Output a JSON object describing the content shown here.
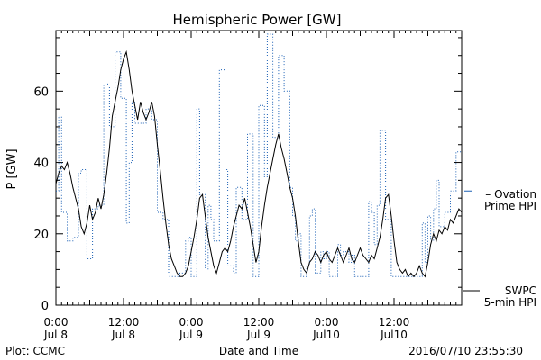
{
  "chart_data": {
    "type": "line",
    "title": "Hemispheric Power [GW]",
    "xlabel": "Date and Time",
    "ylabel": "P [GW]",
    "ylim": [
      0,
      77
    ],
    "xlim_hours": [
      0,
      72
    ],
    "yticks": [
      0,
      20,
      40,
      60
    ],
    "xticks": [
      {
        "h": 0,
        "time": "0:00",
        "date": "Jul 8"
      },
      {
        "h": 12,
        "time": "12:00",
        "date": "Jul 8"
      },
      {
        "h": 24,
        "time": "0:00",
        "date": "Jul 9"
      },
      {
        "h": 36,
        "time": "12:00",
        "date": "Jul 9"
      },
      {
        "h": 48,
        "time": "0:00",
        "date": "Jul10"
      },
      {
        "h": 60,
        "time": "12:00",
        "date": "Jul10"
      }
    ],
    "series": [
      {
        "name": "5-min HPI",
        "legend_lines": [
          "SWPC",
          "5-min HPI"
        ],
        "color": "#000000",
        "style": "solid",
        "points": [
          [
            0,
            34
          ],
          [
            0.5,
            37
          ],
          [
            1,
            39
          ],
          [
            1.5,
            38
          ],
          [
            2,
            40
          ],
          [
            2.5,
            37
          ],
          [
            3,
            33
          ],
          [
            3.5,
            30
          ],
          [
            4,
            27
          ],
          [
            4.5,
            22
          ],
          [
            5,
            20
          ],
          [
            5.5,
            23
          ],
          [
            6,
            28
          ],
          [
            6.5,
            24
          ],
          [
            7,
            26
          ],
          [
            7.5,
            30
          ],
          [
            8,
            27
          ],
          [
            8.5,
            31
          ],
          [
            9,
            37
          ],
          [
            9.5,
            44
          ],
          [
            10,
            53
          ],
          [
            10.5,
            57
          ],
          [
            11,
            61
          ],
          [
            11.5,
            66
          ],
          [
            12,
            69
          ],
          [
            12.5,
            71
          ],
          [
            13,
            66
          ],
          [
            13.5,
            60
          ],
          [
            14,
            56
          ],
          [
            14.5,
            52
          ],
          [
            15,
            57
          ],
          [
            15.5,
            54
          ],
          [
            16,
            52
          ],
          [
            16.5,
            54
          ],
          [
            17,
            57
          ],
          [
            17.5,
            53
          ],
          [
            18,
            45
          ],
          [
            18.5,
            38
          ],
          [
            19,
            30
          ],
          [
            19.5,
            23
          ],
          [
            20,
            17
          ],
          [
            20.5,
            13
          ],
          [
            21,
            11
          ],
          [
            21.5,
            9
          ],
          [
            22,
            8
          ],
          [
            22.5,
            8
          ],
          [
            23,
            9
          ],
          [
            23.5,
            11
          ],
          [
            24,
            15
          ],
          [
            24.5,
            19
          ],
          [
            25,
            24
          ],
          [
            25.5,
            30
          ],
          [
            26,
            31
          ],
          [
            26.5,
            25
          ],
          [
            27,
            19
          ],
          [
            27.5,
            15
          ],
          [
            28,
            11
          ],
          [
            28.5,
            9
          ],
          [
            29,
            12
          ],
          [
            29.5,
            15
          ],
          [
            30,
            16
          ],
          [
            30.5,
            15
          ],
          [
            31,
            18
          ],
          [
            31.5,
            22
          ],
          [
            32,
            25
          ],
          [
            32.5,
            28
          ],
          [
            33,
            27
          ],
          [
            33.5,
            30
          ],
          [
            34,
            26
          ],
          [
            34.5,
            22
          ],
          [
            35,
            17
          ],
          [
            35.5,
            12
          ],
          [
            36,
            15
          ],
          [
            36.5,
            22
          ],
          [
            37,
            28
          ],
          [
            37.5,
            33
          ],
          [
            38,
            37
          ],
          [
            38.5,
            41
          ],
          [
            39,
            45
          ],
          [
            39.5,
            48
          ],
          [
            40,
            44
          ],
          [
            40.5,
            41
          ],
          [
            41,
            37
          ],
          [
            41.5,
            33
          ],
          [
            42,
            30
          ],
          [
            42.5,
            25
          ],
          [
            43,
            18
          ],
          [
            43.5,
            12
          ],
          [
            44,
            10
          ],
          [
            44.5,
            9
          ],
          [
            45,
            12
          ],
          [
            45.5,
            13
          ],
          [
            46,
            15
          ],
          [
            46.5,
            14
          ],
          [
            47,
            12
          ],
          [
            47.5,
            14
          ],
          [
            48,
            15
          ],
          [
            48.5,
            13
          ],
          [
            49,
            12
          ],
          [
            49.5,
            14
          ],
          [
            50,
            16
          ],
          [
            50.5,
            14
          ],
          [
            51,
            12
          ],
          [
            51.5,
            14
          ],
          [
            52,
            16
          ],
          [
            52.5,
            13
          ],
          [
            53,
            12
          ],
          [
            53.5,
            14
          ],
          [
            54,
            16
          ],
          [
            54.5,
            14
          ],
          [
            55,
            13
          ],
          [
            55.5,
            12
          ],
          [
            56,
            14
          ],
          [
            56.5,
            13
          ],
          [
            57,
            16
          ],
          [
            57.5,
            19
          ],
          [
            58,
            24
          ],
          [
            58.5,
            30
          ],
          [
            59,
            31
          ],
          [
            59.5,
            25
          ],
          [
            60,
            18
          ],
          [
            60.5,
            12
          ],
          [
            61,
            10
          ],
          [
            61.5,
            9
          ],
          [
            62,
            10
          ],
          [
            62.5,
            8
          ],
          [
            63,
            9
          ],
          [
            63.5,
            8
          ],
          [
            64,
            9
          ],
          [
            64.5,
            11
          ],
          [
            65,
            9
          ],
          [
            65.5,
            8
          ],
          [
            66,
            12
          ],
          [
            66.5,
            17
          ],
          [
            67,
            20
          ],
          [
            67.5,
            18
          ],
          [
            68,
            21
          ],
          [
            68.5,
            20
          ],
          [
            69,
            22
          ],
          [
            69.5,
            21
          ],
          [
            70,
            24
          ],
          [
            70.5,
            23
          ],
          [
            71,
            25
          ],
          [
            71.5,
            27
          ],
          [
            72,
            26
          ]
        ]
      },
      {
        "name": "Ovation Prime HPI",
        "legend_lines": [
          "– Ovation",
          "Prime HPI"
        ],
        "color": "#1a5fb4",
        "style": "dotted",
        "steps": [
          [
            0,
            32
          ],
          [
            0.5,
            53
          ],
          [
            1,
            26
          ],
          [
            2,
            18
          ],
          [
            3,
            19
          ],
          [
            4,
            37
          ],
          [
            4.5,
            38
          ],
          [
            5.5,
            13
          ],
          [
            6.5,
            27
          ],
          [
            7.5,
            28
          ],
          [
            8.5,
            62
          ],
          [
            9.5,
            50
          ],
          [
            10.5,
            71
          ],
          [
            11.5,
            58
          ],
          [
            12.5,
            23
          ],
          [
            13,
            40
          ],
          [
            13.5,
            57
          ],
          [
            14,
            51
          ],
          [
            16,
            55
          ],
          [
            17,
            52
          ],
          [
            18,
            26
          ],
          [
            19,
            24
          ],
          [
            20,
            8
          ],
          [
            22,
            9
          ],
          [
            23,
            18
          ],
          [
            23.5,
            19
          ],
          [
            24,
            8
          ],
          [
            25,
            55
          ],
          [
            25.5,
            31
          ],
          [
            26.5,
            10
          ],
          [
            27,
            28
          ],
          [
            27.5,
            24
          ],
          [
            28,
            18
          ],
          [
            29,
            66
          ],
          [
            30,
            38
          ],
          [
            30.5,
            11
          ],
          [
            31.5,
            9
          ],
          [
            32,
            33
          ],
          [
            33,
            24
          ],
          [
            34,
            48
          ],
          [
            35,
            8
          ],
          [
            36,
            56
          ],
          [
            37,
            36
          ],
          [
            37.5,
            76
          ],
          [
            38.5,
            47
          ],
          [
            39.5,
            70
          ],
          [
            40.5,
            60
          ],
          [
            41.5,
            33
          ],
          [
            42,
            25
          ],
          [
            42.5,
            18
          ],
          [
            43,
            20
          ],
          [
            43.5,
            8
          ],
          [
            44.5,
            11
          ],
          [
            45,
            25
          ],
          [
            45.5,
            27
          ],
          [
            46,
            9
          ],
          [
            47,
            15
          ],
          [
            47.5,
            13
          ],
          [
            48,
            15
          ],
          [
            48.5,
            8
          ],
          [
            50,
            17
          ],
          [
            50.5,
            14
          ],
          [
            51,
            15
          ],
          [
            52,
            12
          ],
          [
            52.5,
            14
          ],
          [
            53,
            8
          ],
          [
            55.5,
            29
          ],
          [
            56,
            26
          ],
          [
            56.5,
            17
          ],
          [
            57,
            28
          ],
          [
            57.5,
            49
          ],
          [
            58.5,
            24
          ],
          [
            59.5,
            8
          ],
          [
            65,
            23
          ],
          [
            65.5,
            12
          ],
          [
            66,
            25
          ],
          [
            66.5,
            18
          ],
          [
            67,
            27
          ],
          [
            67.5,
            35
          ],
          [
            68,
            22
          ],
          [
            69,
            26
          ],
          [
            70,
            32
          ],
          [
            71,
            43
          ],
          [
            72,
            43
          ]
        ]
      }
    ],
    "grid": false
  },
  "footer": {
    "plot_credit": "Plot: CCMC",
    "timestamp": "2016/07/10 23:55:30"
  }
}
